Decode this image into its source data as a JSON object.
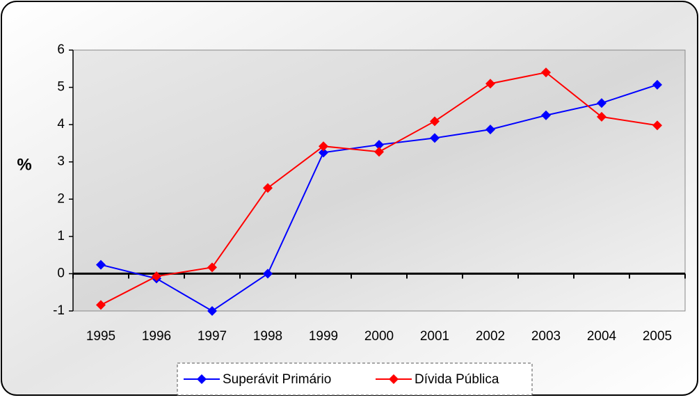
{
  "chart_data": {
    "type": "line",
    "y_label": "%",
    "categories": [
      "1995",
      "1996",
      "1997",
      "1998",
      "1999",
      "2000",
      "2001",
      "2002",
      "2003",
      "2004",
      "2005"
    ],
    "series": [
      {
        "name": "Superávit Primário",
        "color": "#0000ff",
        "values": [
          0.24,
          -0.13,
          -1.0,
          0.0,
          3.25,
          3.46,
          3.64,
          3.87,
          4.25,
          4.58,
          5.07
        ]
      },
      {
        "name": "Dívida Pública",
        "color": "#ff0000",
        "values": [
          -0.84,
          -0.07,
          0.17,
          2.3,
          3.42,
          3.27,
          4.09,
          5.1,
          5.4,
          4.21,
          3.98
        ]
      }
    ],
    "ylim": [
      -1,
      6
    ],
    "yticks": [
      -1,
      0,
      1,
      2,
      3,
      4,
      5,
      6
    ],
    "grid": false,
    "legend": "bottom"
  }
}
